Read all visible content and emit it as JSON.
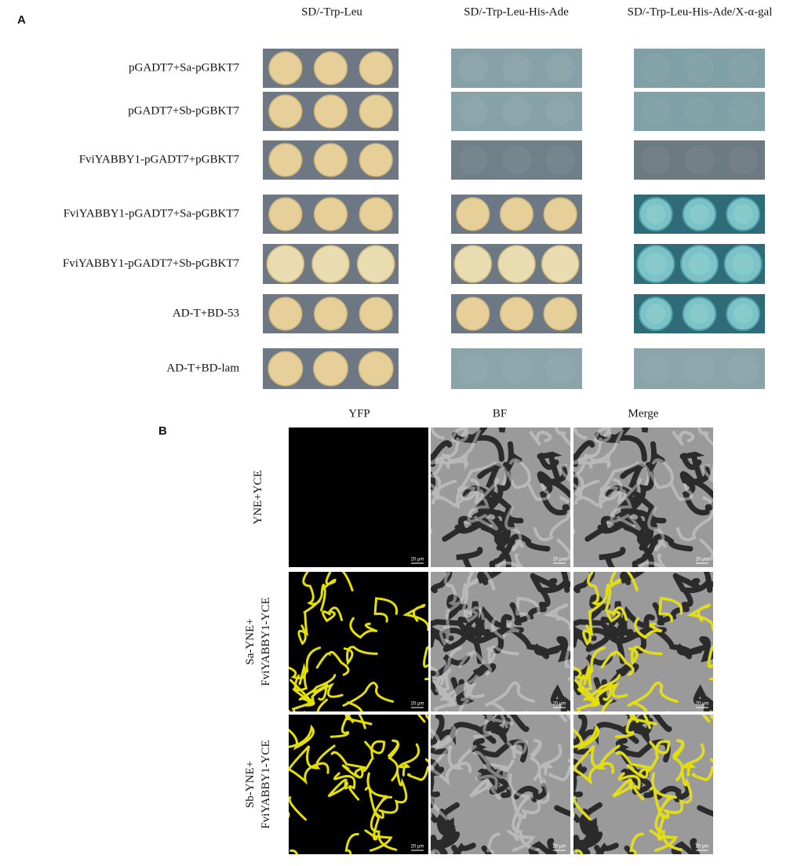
{
  "panel_a": {
    "label": "A",
    "columns": [
      "SD/-Trp-Leu",
      "SD/-Trp-Leu-His-Ade",
      "SD/-Trp-Leu-His-Ade/X-α-gal"
    ],
    "rows": [
      "pGADT7+Sa-pGBKT7",
      "pGADT7+Sb-pGBKT7",
      "FviYABBY1-pGADT7+pGBKT7",
      "FviYABBY1-pGADT7+Sa-pGBKT7",
      "FviYABBY1-pGADT7+Sb-pGBKT7",
      "AD-T+BD-53",
      "AD-T+BD-lam"
    ]
  },
  "panel_b": {
    "label": "B",
    "columns": [
      "YFP",
      "BF",
      "Merge"
    ],
    "rows": [
      [
        "YNE+YCE"
      ],
      [
        "Sa-YNE+",
        "FviYABBY1-YCE"
      ],
      [
        "Sb-YNE+",
        "FviYABBY1-YCE"
      ]
    ],
    "scale_bar": "20 μm"
  }
}
